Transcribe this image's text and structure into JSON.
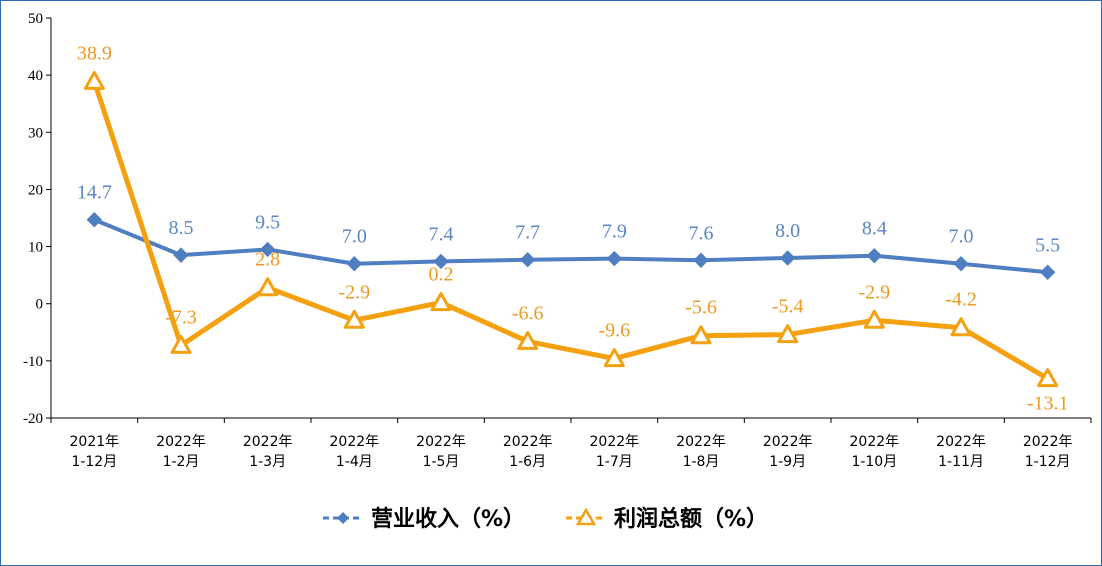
{
  "chart_data": {
    "type": "line",
    "categories": [
      [
        "2021年",
        "1-12月"
      ],
      [
        "2022年",
        "1-2月"
      ],
      [
        "2022年",
        "1-3月"
      ],
      [
        "2022年",
        "1-4月"
      ],
      [
        "2022年",
        "1-5月"
      ],
      [
        "2022年",
        "1-6月"
      ],
      [
        "2022年",
        "1-7月"
      ],
      [
        "2022年",
        "1-8月"
      ],
      [
        "2022年",
        "1-9月"
      ],
      [
        "2022年",
        "1-10月"
      ],
      [
        "2022年",
        "1-11月"
      ],
      [
        "2022年",
        "1-12月"
      ]
    ],
    "series": [
      {
        "name": "营业收入（%）",
        "color": "#4f7ec1",
        "label_color": "#5b86c5",
        "marker": "diamond",
        "values": [
          14.7,
          8.5,
          9.5,
          7.0,
          7.4,
          7.7,
          7.9,
          7.6,
          8.0,
          8.4,
          7.0,
          5.5
        ],
        "labels": [
          "14.7",
          "8.5",
          "9.5",
          "7.0",
          "7.4",
          "7.7",
          "7.9",
          "7.6",
          "8.0",
          "8.4",
          "7.0",
          "5.5"
        ]
      },
      {
        "name": "利润总额（%）",
        "color": "#f5a00f",
        "label_color": "#ed9a21",
        "marker": "triangle",
        "values": [
          38.9,
          -7.3,
          2.8,
          -2.9,
          0.2,
          -6.6,
          -9.6,
          -5.6,
          -5.4,
          -2.9,
          -4.2,
          -13.1
        ],
        "labels": [
          "38.9",
          "-7.3",
          "2.8",
          "-2.9",
          "0.2",
          "-6.6",
          "-9.6",
          "-5.6",
          "-5.4",
          "-2.9",
          "-4.2",
          "-13.1"
        ]
      }
    ],
    "ylim": [
      -20,
      50
    ],
    "yticks": [
      -20,
      -10,
      0,
      10,
      20,
      30,
      40,
      50
    ],
    "grid": false,
    "legend_position": "bottom"
  }
}
